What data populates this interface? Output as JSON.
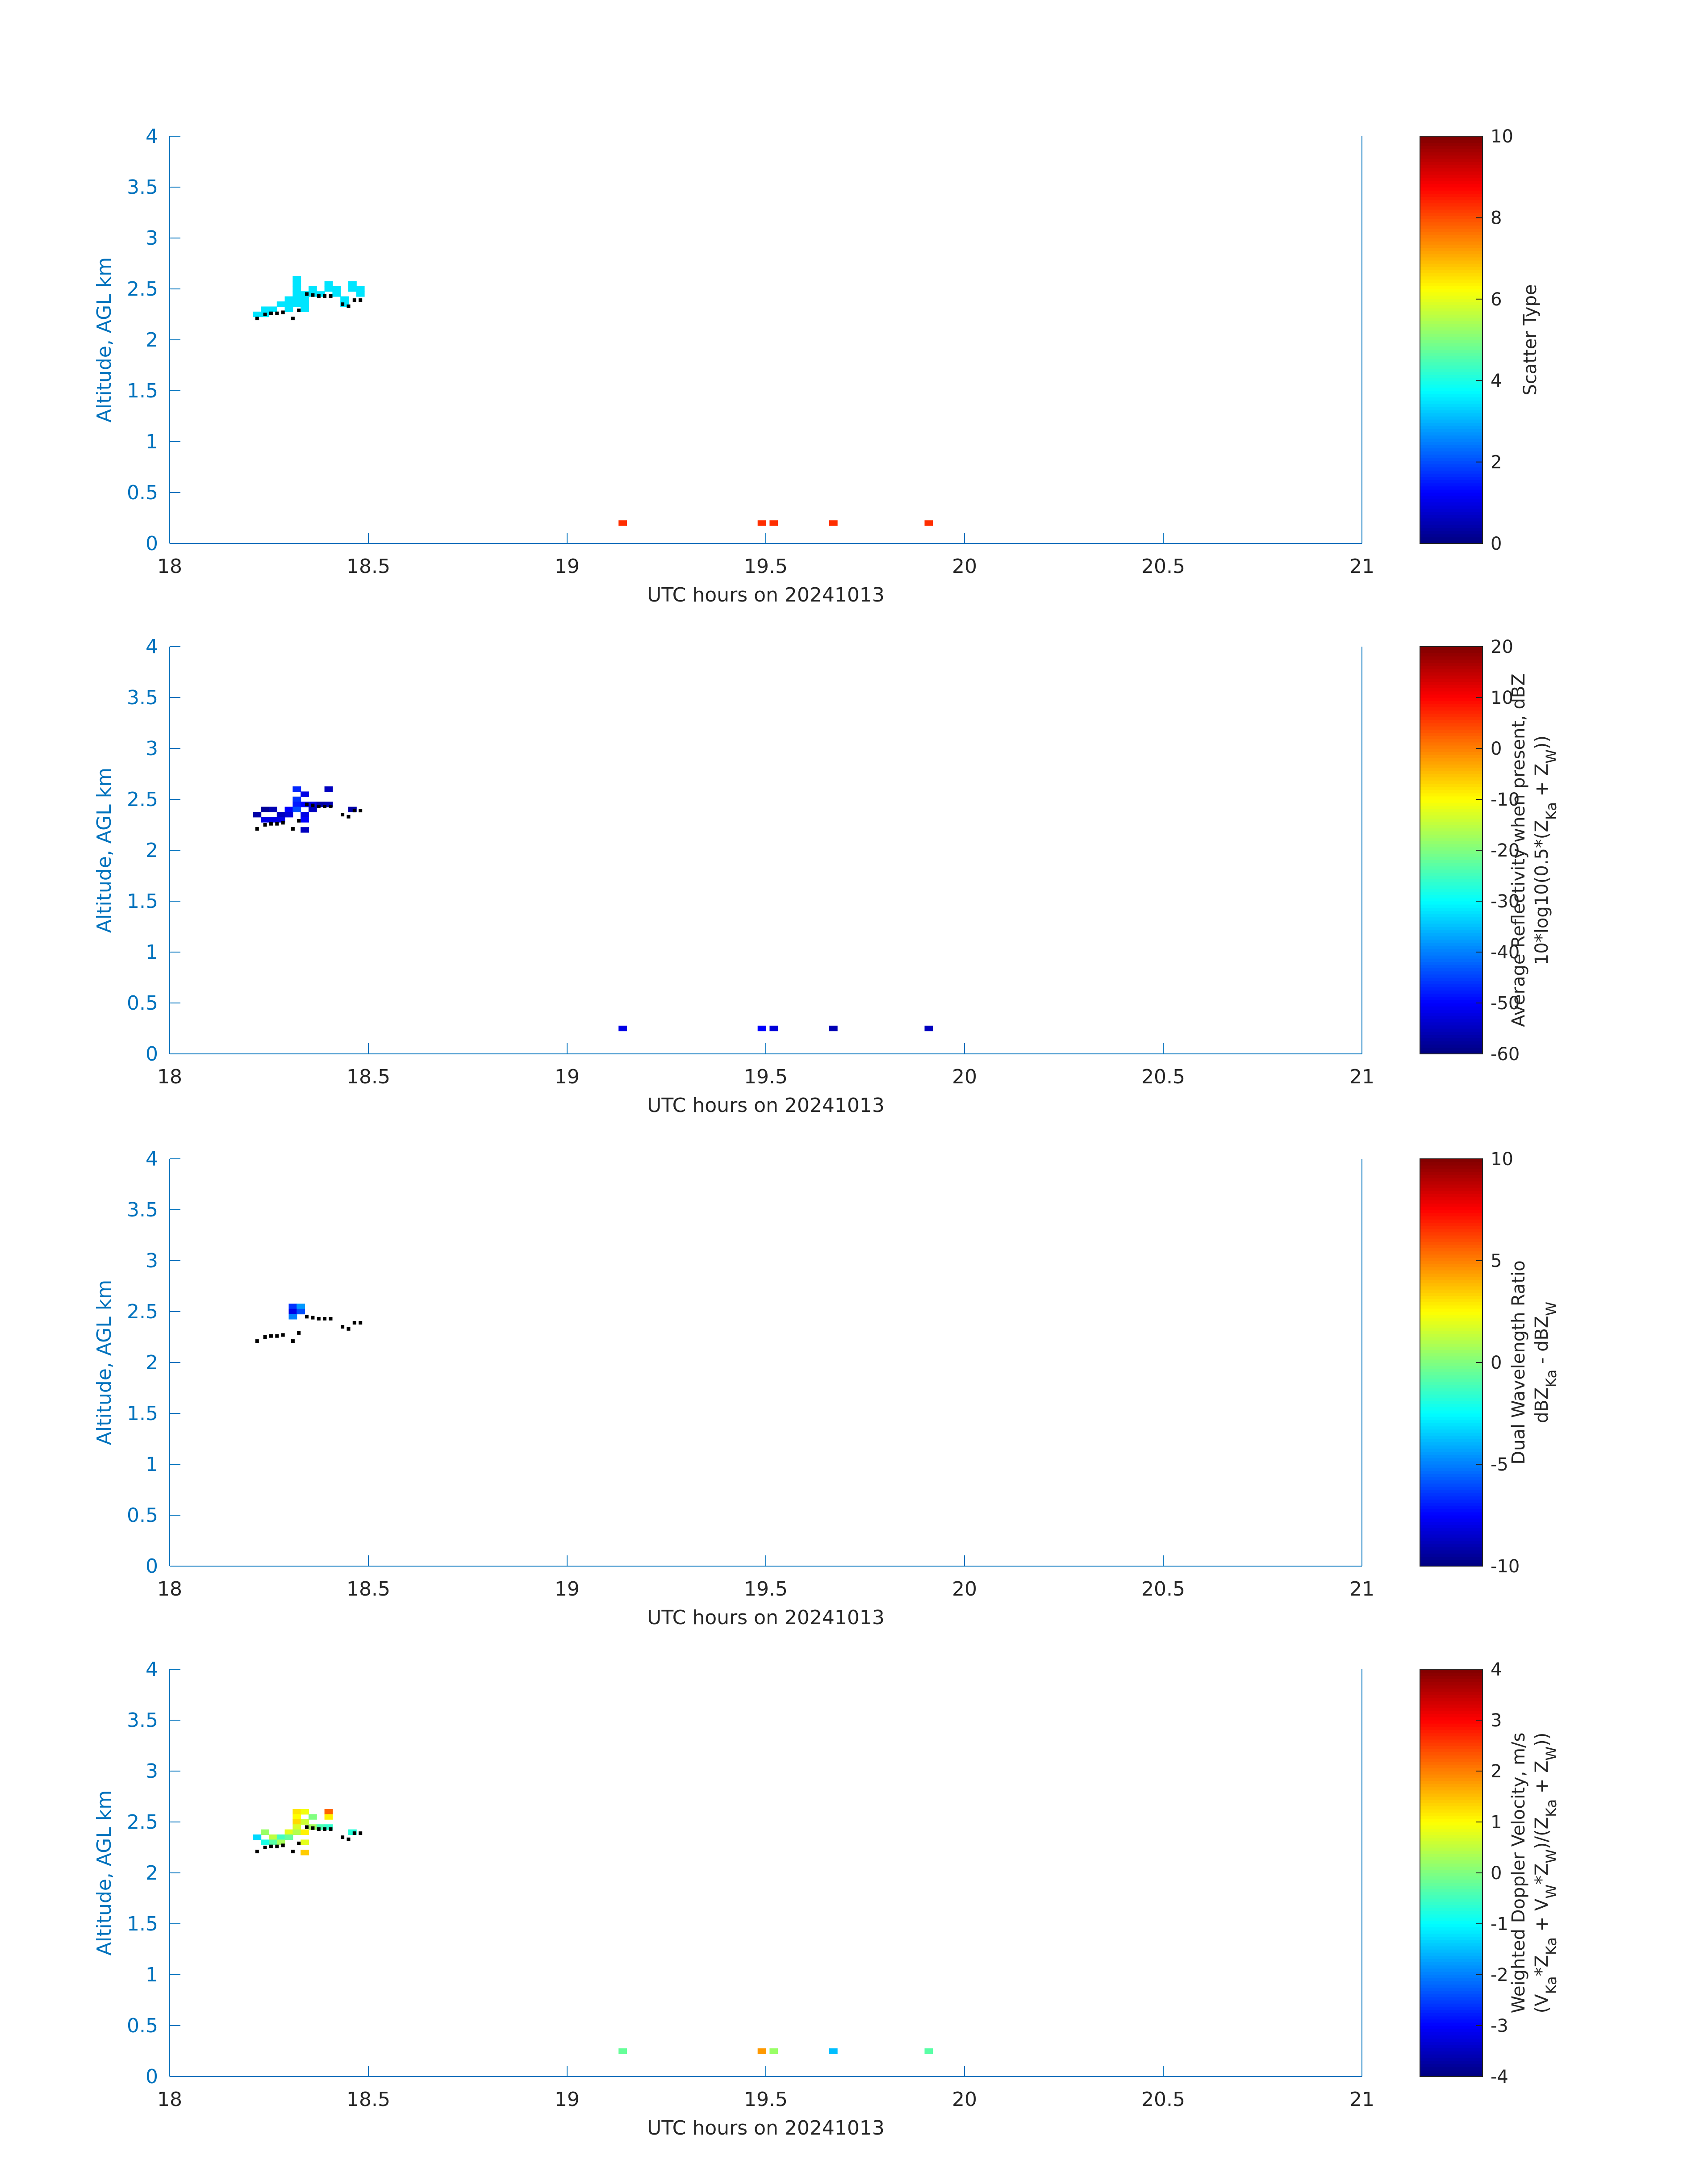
{
  "chart_data": [
    {
      "type": "heatmap",
      "xlabel": "UTC hours on 20241013",
      "ylabel": "Altitude, AGL km",
      "xlim": [
        18,
        21
      ],
      "ylim": [
        0,
        4
      ],
      "xticks": [
        "18",
        "18.5",
        "19",
        "19.5",
        "20",
        "20.5",
        "21"
      ],
      "yticks": [
        "0",
        "0.5",
        "1",
        "1.5",
        "2",
        "2.5",
        "3",
        "3.5",
        "4"
      ],
      "colorbar": {
        "label_lines": [
          "Scatter Type"
        ],
        "range": [
          0,
          10
        ],
        "ticks": [
          "0",
          "2",
          "4",
          "6",
          "8",
          "10"
        ],
        "colormap": "jet"
      },
      "cells": [
        {
          "x": 18.22,
          "y": 2.25,
          "v": 3.5
        },
        {
          "x": 18.24,
          "y": 2.3,
          "v": 3.5
        },
        {
          "x": 18.24,
          "y": 2.25,
          "v": 3.5
        },
        {
          "x": 18.26,
          "y": 2.3,
          "v": 3.5
        },
        {
          "x": 18.28,
          "y": 2.35,
          "v": 3.5
        },
        {
          "x": 18.3,
          "y": 2.4,
          "v": 3.5
        },
        {
          "x": 18.3,
          "y": 2.35,
          "v": 3.5
        },
        {
          "x": 18.3,
          "y": 2.3,
          "v": 3.5
        },
        {
          "x": 18.32,
          "y": 2.6,
          "v": 3.5
        },
        {
          "x": 18.32,
          "y": 2.55,
          "v": 3.5
        },
        {
          "x": 18.32,
          "y": 2.5,
          "v": 3.5
        },
        {
          "x": 18.32,
          "y": 2.45,
          "v": 3.5
        },
        {
          "x": 18.32,
          "y": 2.4,
          "v": 3.5
        },
        {
          "x": 18.32,
          "y": 2.35,
          "v": 3.5
        },
        {
          "x": 18.34,
          "y": 2.45,
          "v": 3.5
        },
        {
          "x": 18.34,
          "y": 2.4,
          "v": 3.5
        },
        {
          "x": 18.34,
          "y": 2.35,
          "v": 3.5
        },
        {
          "x": 18.34,
          "y": 2.3,
          "v": 3.5
        },
        {
          "x": 18.36,
          "y": 2.5,
          "v": 3.5
        },
        {
          "x": 18.36,
          "y": 2.45,
          "v": 3.5
        },
        {
          "x": 18.38,
          "y": 2.45,
          "v": 3.5
        },
        {
          "x": 18.4,
          "y": 2.55,
          "v": 3.5
        },
        {
          "x": 18.4,
          "y": 2.5,
          "v": 3.5
        },
        {
          "x": 18.42,
          "y": 2.5,
          "v": 3.5
        },
        {
          "x": 18.42,
          "y": 2.45,
          "v": 3.5
        },
        {
          "x": 18.44,
          "y": 2.4,
          "v": 3.5
        },
        {
          "x": 18.44,
          "y": 2.35,
          "v": 3.5
        },
        {
          "x": 18.46,
          "y": 2.55,
          "v": 3.5
        },
        {
          "x": 18.46,
          "y": 2.5,
          "v": 3.5
        },
        {
          "x": 18.48,
          "y": 2.5,
          "v": 3.5
        },
        {
          "x": 18.48,
          "y": 2.45,
          "v": 3.5
        },
        {
          "x": 19.14,
          "y": 0.2,
          "v": 8.3
        },
        {
          "x": 19.49,
          "y": 0.2,
          "v": 8.3
        },
        {
          "x": 19.52,
          "y": 0.2,
          "v": 8.3
        },
        {
          "x": 19.67,
          "y": 0.2,
          "v": 8.3
        },
        {
          "x": 19.91,
          "y": 0.2,
          "v": 8.3
        }
      ]
    },
    {
      "type": "heatmap",
      "xlabel": "UTC hours on 20241013",
      "ylabel": "Altitude, AGL km",
      "xlim": [
        18,
        21
      ],
      "ylim": [
        0,
        4
      ],
      "xticks": [
        "18",
        "18.5",
        "19",
        "19.5",
        "20",
        "20.5",
        "21"
      ],
      "yticks": [
        "0",
        "0.5",
        "1",
        "1.5",
        "2",
        "2.5",
        "3",
        "3.5",
        "4"
      ],
      "colorbar": {
        "label_lines": [
          "Average Reflectivity when present, dBZ",
          "10*log10(0.5*(Z_Ka + Z_W))"
        ],
        "range": [
          -60,
          20
        ],
        "ticks": [
          "-60",
          "-50",
          "-40",
          "-30",
          "-20",
          "-10",
          "0",
          "10",
          "20"
        ],
        "colormap": "jet"
      },
      "cells": [
        {
          "x": 18.22,
          "y": 2.35,
          "v": -57
        },
        {
          "x": 18.24,
          "y": 2.4,
          "v": -58
        },
        {
          "x": 18.24,
          "y": 2.3,
          "v": -52
        },
        {
          "x": 18.26,
          "y": 2.4,
          "v": -56
        },
        {
          "x": 18.26,
          "y": 2.3,
          "v": -52
        },
        {
          "x": 18.28,
          "y": 2.35,
          "v": -55
        },
        {
          "x": 18.28,
          "y": 2.3,
          "v": -52
        },
        {
          "x": 18.3,
          "y": 2.4,
          "v": -50
        },
        {
          "x": 18.3,
          "y": 2.35,
          "v": -53
        },
        {
          "x": 18.32,
          "y": 2.6,
          "v": -47
        },
        {
          "x": 18.32,
          "y": 2.5,
          "v": -46
        },
        {
          "x": 18.32,
          "y": 2.45,
          "v": -48
        },
        {
          "x": 18.32,
          "y": 2.4,
          "v": -44
        },
        {
          "x": 18.34,
          "y": 2.55,
          "v": -52
        },
        {
          "x": 18.34,
          "y": 2.45,
          "v": -50
        },
        {
          "x": 18.34,
          "y": 2.35,
          "v": -52
        },
        {
          "x": 18.34,
          "y": 2.3,
          "v": -50
        },
        {
          "x": 18.34,
          "y": 2.2,
          "v": -55
        },
        {
          "x": 18.36,
          "y": 2.45,
          "v": -52
        },
        {
          "x": 18.36,
          "y": 2.4,
          "v": -55
        },
        {
          "x": 18.38,
          "y": 2.45,
          "v": -57
        },
        {
          "x": 18.4,
          "y": 2.6,
          "v": -55
        },
        {
          "x": 18.4,
          "y": 2.45,
          "v": -56
        },
        {
          "x": 18.46,
          "y": 2.4,
          "v": -57
        },
        {
          "x": 19.14,
          "y": 0.25,
          "v": -52
        },
        {
          "x": 19.49,
          "y": 0.25,
          "v": -50
        },
        {
          "x": 19.52,
          "y": 0.25,
          "v": -53
        },
        {
          "x": 19.67,
          "y": 0.25,
          "v": -56
        },
        {
          "x": 19.91,
          "y": 0.25,
          "v": -55
        }
      ]
    },
    {
      "type": "heatmap",
      "xlabel": "UTC hours on 20241013",
      "ylabel": "Altitude, AGL km",
      "xlim": [
        18,
        21
      ],
      "ylim": [
        0,
        4
      ],
      "xticks": [
        "18",
        "18.5",
        "19",
        "19.5",
        "20",
        "20.5",
        "21"
      ],
      "yticks": [
        "0",
        "0.5",
        "1",
        "1.5",
        "2",
        "2.5",
        "3",
        "3.5",
        "4"
      ],
      "colorbar": {
        "label_lines": [
          "Dual Wavelength Ratio",
          "dBZ_Ka - dBZ_W"
        ],
        "range": [
          -10,
          10
        ],
        "ticks": [
          "-10",
          "-5",
          "0",
          "5",
          "10"
        ],
        "colormap": "jet"
      },
      "cells": [
        {
          "x": 18.31,
          "y": 2.55,
          "v": -6.5
        },
        {
          "x": 18.33,
          "y": 2.55,
          "v": -4.5
        },
        {
          "x": 18.31,
          "y": 2.5,
          "v": -8.0
        },
        {
          "x": 18.33,
          "y": 2.5,
          "v": -6.0
        },
        {
          "x": 18.31,
          "y": 2.45,
          "v": -5.0
        }
      ]
    },
    {
      "type": "heatmap",
      "xlabel": "UTC hours on 20241013",
      "ylabel": "Altitude, AGL km",
      "xlim": [
        18,
        21
      ],
      "ylim": [
        0,
        4
      ],
      "xticks": [
        "18",
        "18.5",
        "19",
        "19.5",
        "20",
        "20.5",
        "21"
      ],
      "yticks": [
        "0",
        "0.5",
        "1",
        "1.5",
        "2",
        "2.5",
        "3",
        "3.5",
        "4"
      ],
      "colorbar": {
        "label_lines": [
          "Weighted Doppler Velocity, m/s",
          "(V_Ka*Z_Ka + V_W*Z_W)/(Z_Ka + Z_W))"
        ],
        "range": [
          -4,
          4
        ],
        "ticks": [
          "-4",
          "-3",
          "-2",
          "-1",
          "0",
          "1",
          "2",
          "3",
          "4"
        ],
        "colormap": "jet"
      },
      "cells": [
        {
          "x": 18.22,
          "y": 2.35,
          "v": -1.3
        },
        {
          "x": 18.24,
          "y": 2.4,
          "v": 0.2
        },
        {
          "x": 18.24,
          "y": 2.3,
          "v": -0.8
        },
        {
          "x": 18.26,
          "y": 2.35,
          "v": 0.5
        },
        {
          "x": 18.26,
          "y": 2.3,
          "v": -0.3
        },
        {
          "x": 18.28,
          "y": 2.35,
          "v": -0.5
        },
        {
          "x": 18.28,
          "y": 2.3,
          "v": 0.3
        },
        {
          "x": 18.3,
          "y": 2.4,
          "v": 0.8
        },
        {
          "x": 18.3,
          "y": 2.35,
          "v": -0.2
        },
        {
          "x": 18.32,
          "y": 2.6,
          "v": 1.2
        },
        {
          "x": 18.32,
          "y": 2.55,
          "v": 1.0
        },
        {
          "x": 18.32,
          "y": 2.5,
          "v": 1.3
        },
        {
          "x": 18.32,
          "y": 2.45,
          "v": 0.7
        },
        {
          "x": 18.32,
          "y": 2.4,
          "v": 0.4
        },
        {
          "x": 18.34,
          "y": 2.6,
          "v": 0.9
        },
        {
          "x": 18.34,
          "y": 2.5,
          "v": 0.6
        },
        {
          "x": 18.34,
          "y": 2.4,
          "v": 1.1
        },
        {
          "x": 18.34,
          "y": 2.3,
          "v": 0.8
        },
        {
          "x": 18.34,
          "y": 2.2,
          "v": 1.4
        },
        {
          "x": 18.36,
          "y": 2.55,
          "v": 0.0
        },
        {
          "x": 18.36,
          "y": 2.45,
          "v": 0.3
        },
        {
          "x": 18.38,
          "y": 2.45,
          "v": -0.4
        },
        {
          "x": 18.4,
          "y": 2.6,
          "v": 2.2
        },
        {
          "x": 18.4,
          "y": 2.55,
          "v": 1.1
        },
        {
          "x": 18.4,
          "y": 2.45,
          "v": -0.6
        },
        {
          "x": 18.46,
          "y": 2.4,
          "v": -0.7
        },
        {
          "x": 19.14,
          "y": 0.25,
          "v": -0.2
        },
        {
          "x": 19.49,
          "y": 0.25,
          "v": 1.8
        },
        {
          "x": 19.52,
          "y": 0.25,
          "v": 0.2
        },
        {
          "x": 19.67,
          "y": 0.25,
          "v": -1.5
        },
        {
          "x": 19.91,
          "y": 0.25,
          "v": -0.3
        }
      ]
    }
  ],
  "cloud_base_dots": [
    {
      "x": 18.22,
      "y": 2.21
    },
    {
      "x": 18.24,
      "y": 2.25
    },
    {
      "x": 18.255,
      "y": 2.26
    },
    {
      "x": 18.27,
      "y": 2.26
    },
    {
      "x": 18.285,
      "y": 2.27
    },
    {
      "x": 18.31,
      "y": 2.21
    },
    {
      "x": 18.325,
      "y": 2.29
    },
    {
      "x": 18.345,
      "y": 2.45
    },
    {
      "x": 18.36,
      "y": 2.44
    },
    {
      "x": 18.375,
      "y": 2.43
    },
    {
      "x": 18.39,
      "y": 2.43
    },
    {
      "x": 18.405,
      "y": 2.43
    },
    {
      "x": 18.435,
      "y": 2.35
    },
    {
      "x": 18.45,
      "y": 2.33
    },
    {
      "x": 18.465,
      "y": 2.39
    },
    {
      "x": 18.48,
      "y": 2.39
    }
  ],
  "colors": {
    "axis": "#0072bd",
    "tick_text": "#0072bd",
    "label_text": "#262626",
    "dots": "#000000"
  }
}
